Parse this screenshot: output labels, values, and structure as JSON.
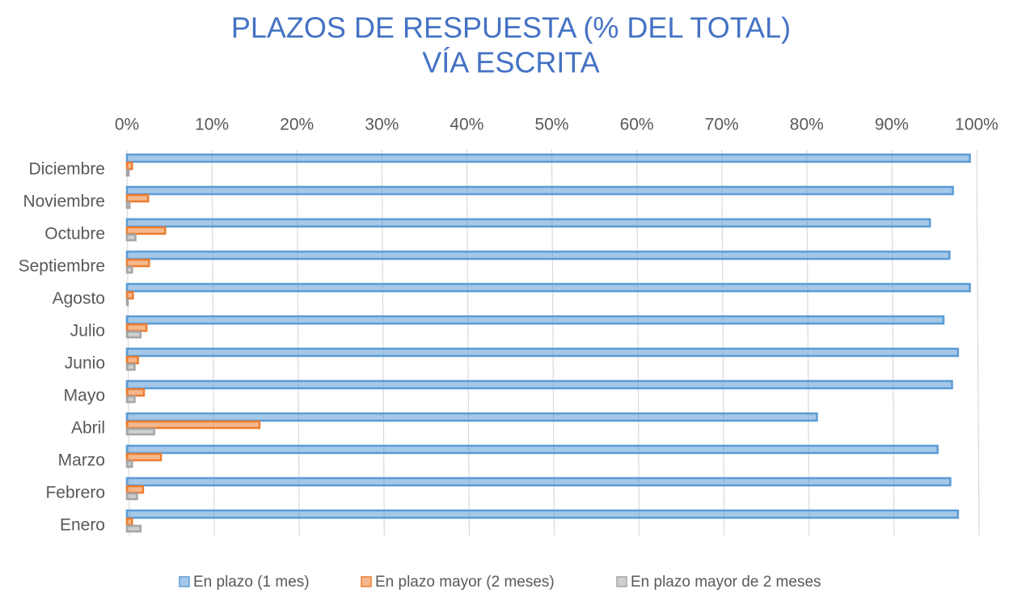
{
  "chart_data": {
    "type": "bar",
    "orientation": "horizontal",
    "title": "PLAZOS DE RESPUESTA (% DEL TOTAL)",
    "subtitle": "VÍA ESCRITA",
    "categories": [
      "Diciembre",
      "Noviembre",
      "Octubre",
      "Septiembre",
      "Agosto",
      "Julio",
      "Junio",
      "Mayo",
      "Abril",
      "Marzo",
      "Febrero",
      "Enero"
    ],
    "series": [
      {
        "name": "En plazo (1 mes)",
        "color": "#5b9bd5",
        "values": [
          99.2,
          97.2,
          94.5,
          96.8,
          99.2,
          96.1,
          97.8,
          97.1,
          81.2,
          95.4,
          96.9,
          97.8
        ]
      },
      {
        "name": "En plazo mayor (2 meses)",
        "color": "#ed7d31",
        "values": [
          0.6,
          2.5,
          4.5,
          2.6,
          0.7,
          2.3,
          1.3,
          2.0,
          15.6,
          4.0,
          1.9,
          0.6
        ]
      },
      {
        "name": "En plazo mayor de 2 meses",
        "color": "#a5a5a5",
        "values": [
          0.2,
          0.3,
          1.0,
          0.6,
          0.1,
          1.6,
          0.9,
          0.9,
          3.2,
          0.6,
          1.2,
          1.6
        ]
      }
    ],
    "xlim": [
      0,
      100
    ],
    "xticks": [
      {
        "value": 0,
        "label": "0%"
      },
      {
        "value": 10,
        "label": "10%"
      },
      {
        "value": 20,
        "label": "20%"
      },
      {
        "value": 30,
        "label": "30%"
      },
      {
        "value": 40,
        "label": "40%"
      },
      {
        "value": 50,
        "label": "50%"
      },
      {
        "value": 60,
        "label": "60%"
      },
      {
        "value": 70,
        "label": "70%"
      },
      {
        "value": 80,
        "label": "80%"
      },
      {
        "value": 90,
        "label": "90%"
      },
      {
        "value": 100,
        "label": "100%"
      }
    ],
    "grid": true,
    "legend": "bottom"
  }
}
